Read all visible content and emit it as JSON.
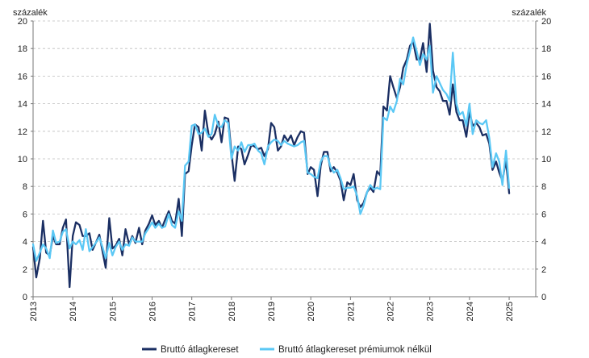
{
  "chart_data": {
    "type": "line",
    "y_unit_left": "százalék",
    "y_unit_right": "százalék",
    "ylim": [
      0,
      20
    ],
    "yticks": [
      0,
      2,
      4,
      6,
      8,
      10,
      12,
      14,
      16,
      18,
      20
    ],
    "xlim": [
      2013.0,
      2025.67
    ],
    "xticks": [
      "2013",
      "2014",
      "2015",
      "2016",
      "2017",
      "2018",
      "2019",
      "2020",
      "2021",
      "2022",
      "2023",
      "2024",
      "2025"
    ],
    "grid": "horizontal dashed",
    "legend_position": "bottom",
    "series": [
      {
        "name": "Bruttó átlagkereset",
        "color": "#1b2f63",
        "points": [
          [
            2013.0,
            3.6
          ],
          [
            2013.08,
            1.4
          ],
          [
            2013.17,
            2.8
          ],
          [
            2013.25,
            5.5
          ],
          [
            2013.33,
            3.2
          ],
          [
            2013.42,
            3.0
          ],
          [
            2013.5,
            4.4
          ],
          [
            2013.58,
            3.8
          ],
          [
            2013.67,
            3.8
          ],
          [
            2013.75,
            5.0
          ],
          [
            2013.83,
            5.6
          ],
          [
            2013.92,
            0.7
          ],
          [
            2014.0,
            4.4
          ],
          [
            2014.08,
            5.4
          ],
          [
            2014.17,
            5.2
          ],
          [
            2014.25,
            4.4
          ],
          [
            2014.33,
            4.4
          ],
          [
            2014.42,
            4.6
          ],
          [
            2014.5,
            3.4
          ],
          [
            2014.58,
            3.9
          ],
          [
            2014.67,
            4.5
          ],
          [
            2014.75,
            3.3
          ],
          [
            2014.83,
            2.1
          ],
          [
            2014.92,
            5.7
          ],
          [
            2015.0,
            3.5
          ],
          [
            2015.08,
            3.7
          ],
          [
            2015.17,
            4.2
          ],
          [
            2015.25,
            3.0
          ],
          [
            2015.33,
            4.9
          ],
          [
            2015.42,
            3.8
          ],
          [
            2015.5,
            4.4
          ],
          [
            2015.58,
            3.9
          ],
          [
            2015.67,
            5.0
          ],
          [
            2015.75,
            3.8
          ],
          [
            2015.83,
            4.8
          ],
          [
            2015.92,
            5.3
          ],
          [
            2016.0,
            5.9
          ],
          [
            2016.08,
            5.2
          ],
          [
            2016.17,
            5.5
          ],
          [
            2016.25,
            5.0
          ],
          [
            2016.33,
            5.6
          ],
          [
            2016.42,
            6.2
          ],
          [
            2016.5,
            5.5
          ],
          [
            2016.58,
            5.3
          ],
          [
            2016.67,
            7.1
          ],
          [
            2016.75,
            4.4
          ],
          [
            2016.83,
            8.9
          ],
          [
            2016.92,
            9.1
          ],
          [
            2017.0,
            11.0
          ],
          [
            2017.08,
            12.5
          ],
          [
            2017.17,
            12.3
          ],
          [
            2017.25,
            10.6
          ],
          [
            2017.33,
            13.5
          ],
          [
            2017.42,
            11.8
          ],
          [
            2017.5,
            11.4
          ],
          [
            2017.58,
            11.8
          ],
          [
            2017.67,
            12.7
          ],
          [
            2017.75,
            11.2
          ],
          [
            2017.83,
            13.0
          ],
          [
            2017.92,
            12.9
          ],
          [
            2018.0,
            10.4
          ],
          [
            2018.08,
            8.4
          ],
          [
            2018.17,
            10.9
          ],
          [
            2018.25,
            10.7
          ],
          [
            2018.33,
            9.6
          ],
          [
            2018.42,
            10.3
          ],
          [
            2018.5,
            11.0
          ],
          [
            2018.58,
            10.9
          ],
          [
            2018.67,
            10.7
          ],
          [
            2018.75,
            10.8
          ],
          [
            2018.83,
            10.2
          ],
          [
            2018.92,
            10.7
          ],
          [
            2019.0,
            12.6
          ],
          [
            2019.08,
            12.3
          ],
          [
            2019.17,
            10.6
          ],
          [
            2019.25,
            10.9
          ],
          [
            2019.33,
            11.7
          ],
          [
            2019.42,
            11.3
          ],
          [
            2019.5,
            11.7
          ],
          [
            2019.58,
            11.0
          ],
          [
            2019.67,
            11.6
          ],
          [
            2019.75,
            12.0
          ],
          [
            2019.83,
            11.9
          ],
          [
            2019.92,
            8.9
          ],
          [
            2020.0,
            9.4
          ],
          [
            2020.08,
            9.2
          ],
          [
            2020.17,
            7.3
          ],
          [
            2020.25,
            9.5
          ],
          [
            2020.33,
            10.5
          ],
          [
            2020.42,
            10.5
          ],
          [
            2020.5,
            9.1
          ],
          [
            2020.58,
            9.4
          ],
          [
            2020.67,
            9.0
          ],
          [
            2020.75,
            8.4
          ],
          [
            2020.83,
            7.0
          ],
          [
            2020.92,
            8.3
          ],
          [
            2021.0,
            8.1
          ],
          [
            2021.08,
            8.9
          ],
          [
            2021.17,
            7.0
          ],
          [
            2021.25,
            6.5
          ],
          [
            2021.33,
            6.8
          ],
          [
            2021.42,
            7.6
          ],
          [
            2021.5,
            7.9
          ],
          [
            2021.58,
            7.6
          ],
          [
            2021.67,
            9.1
          ],
          [
            2021.75,
            8.8
          ],
          [
            2021.83,
            13.8
          ],
          [
            2021.92,
            13.5
          ],
          [
            2022.0,
            16.0
          ],
          [
            2022.08,
            15.2
          ],
          [
            2022.17,
            14.4
          ],
          [
            2022.25,
            15.2
          ],
          [
            2022.33,
            16.6
          ],
          [
            2022.42,
            17.2
          ],
          [
            2022.5,
            18.2
          ],
          [
            2022.58,
            18.5
          ],
          [
            2022.67,
            17.2
          ],
          [
            2022.75,
            17.2
          ],
          [
            2022.83,
            18.4
          ],
          [
            2022.92,
            16.3
          ],
          [
            2023.0,
            19.8
          ],
          [
            2023.08,
            16.4
          ],
          [
            2023.17,
            15.2
          ],
          [
            2023.25,
            14.9
          ],
          [
            2023.33,
            14.2
          ],
          [
            2023.42,
            14.2
          ],
          [
            2023.5,
            13.2
          ],
          [
            2023.58,
            15.4
          ],
          [
            2023.67,
            13.4
          ],
          [
            2023.75,
            12.8
          ],
          [
            2023.83,
            12.8
          ],
          [
            2023.92,
            11.6
          ],
          [
            2024.0,
            13.4
          ],
          [
            2024.08,
            12.4
          ],
          [
            2024.17,
            12.6
          ],
          [
            2024.25,
            12.3
          ],
          [
            2024.33,
            11.7
          ],
          [
            2024.42,
            11.8
          ],
          [
            2024.5,
            11.1
          ],
          [
            2024.58,
            9.2
          ],
          [
            2024.67,
            9.8
          ],
          [
            2024.75,
            9.0
          ],
          [
            2024.83,
            8.4
          ],
          [
            2024.92,
            9.9
          ],
          [
            2025.0,
            7.5
          ]
        ]
      },
      {
        "name": "Bruttó átlagkereset prémiumok nélkül",
        "color": "#5bc8f5",
        "points": [
          [
            2013.0,
            3.8
          ],
          [
            2013.08,
            2.6
          ],
          [
            2013.17,
            3.2
          ],
          [
            2013.25,
            3.8
          ],
          [
            2013.33,
            3.5
          ],
          [
            2013.42,
            2.8
          ],
          [
            2013.5,
            4.8
          ],
          [
            2013.58,
            3.9
          ],
          [
            2013.67,
            4.0
          ],
          [
            2013.75,
            4.7
          ],
          [
            2013.83,
            4.9
          ],
          [
            2013.92,
            3.5
          ],
          [
            2014.0,
            4.0
          ],
          [
            2014.08,
            3.8
          ],
          [
            2014.17,
            4.1
          ],
          [
            2014.25,
            3.4
          ],
          [
            2014.33,
            4.9
          ],
          [
            2014.42,
            3.3
          ],
          [
            2014.5,
            3.6
          ],
          [
            2014.58,
            3.9
          ],
          [
            2014.67,
            4.3
          ],
          [
            2014.75,
            3.6
          ],
          [
            2014.83,
            2.8
          ],
          [
            2014.92,
            3.9
          ],
          [
            2015.0,
            3.0
          ],
          [
            2015.08,
            3.6
          ],
          [
            2015.17,
            4.0
          ],
          [
            2015.25,
            3.4
          ],
          [
            2015.33,
            3.8
          ],
          [
            2015.42,
            3.7
          ],
          [
            2015.5,
            4.3
          ],
          [
            2015.58,
            4.0
          ],
          [
            2015.67,
            4.0
          ],
          [
            2015.75,
            4.0
          ],
          [
            2015.83,
            4.6
          ],
          [
            2015.92,
            5.0
          ],
          [
            2016.0,
            5.4
          ],
          [
            2016.08,
            5.0
          ],
          [
            2016.17,
            5.3
          ],
          [
            2016.25,
            5.0
          ],
          [
            2016.33,
            5.1
          ],
          [
            2016.42,
            6.0
          ],
          [
            2016.5,
            5.2
          ],
          [
            2016.58,
            5.0
          ],
          [
            2016.67,
            6.2
          ],
          [
            2016.75,
            5.5
          ],
          [
            2016.83,
            9.5
          ],
          [
            2016.92,
            9.8
          ],
          [
            2017.0,
            12.4
          ],
          [
            2017.08,
            12.5
          ],
          [
            2017.17,
            11.8
          ],
          [
            2017.25,
            11.9
          ],
          [
            2017.33,
            12.2
          ],
          [
            2017.42,
            11.6
          ],
          [
            2017.5,
            11.8
          ],
          [
            2017.58,
            13.2
          ],
          [
            2017.67,
            12.4
          ],
          [
            2017.75,
            12.3
          ],
          [
            2017.83,
            12.8
          ],
          [
            2017.92,
            12.6
          ],
          [
            2018.0,
            10.0
          ],
          [
            2018.08,
            10.9
          ],
          [
            2018.17,
            10.6
          ],
          [
            2018.25,
            11.2
          ],
          [
            2018.33,
            10.5
          ],
          [
            2018.42,
            11.0
          ],
          [
            2018.5,
            11.0
          ],
          [
            2018.58,
            11.1
          ],
          [
            2018.67,
            10.6
          ],
          [
            2018.75,
            10.4
          ],
          [
            2018.83,
            9.6
          ],
          [
            2018.92,
            10.9
          ],
          [
            2019.0,
            11.2
          ],
          [
            2019.08,
            11.4
          ],
          [
            2019.17,
            11.3
          ],
          [
            2019.25,
            11.0
          ],
          [
            2019.33,
            11.3
          ],
          [
            2019.42,
            11.1
          ],
          [
            2019.5,
            11.0
          ],
          [
            2019.58,
            10.9
          ],
          [
            2019.67,
            11.0
          ],
          [
            2019.75,
            11.2
          ],
          [
            2019.83,
            11.3
          ],
          [
            2019.92,
            9.0
          ],
          [
            2020.0,
            8.9
          ],
          [
            2020.08,
            8.7
          ],
          [
            2020.17,
            8.6
          ],
          [
            2020.25,
            9.8
          ],
          [
            2020.33,
            10.2
          ],
          [
            2020.42,
            10.2
          ],
          [
            2020.5,
            9.4
          ],
          [
            2020.58,
            9.0
          ],
          [
            2020.67,
            9.2
          ],
          [
            2020.75,
            8.6
          ],
          [
            2020.83,
            7.8
          ],
          [
            2020.92,
            7.9
          ],
          [
            2021.0,
            7.9
          ],
          [
            2021.08,
            8.0
          ],
          [
            2021.17,
            7.3
          ],
          [
            2021.25,
            6.0
          ],
          [
            2021.33,
            6.6
          ],
          [
            2021.42,
            7.6
          ],
          [
            2021.5,
            8.1
          ],
          [
            2021.58,
            7.8
          ],
          [
            2021.67,
            7.9
          ],
          [
            2021.75,
            7.8
          ],
          [
            2021.83,
            13.0
          ],
          [
            2021.92,
            12.8
          ],
          [
            2022.0,
            13.8
          ],
          [
            2022.08,
            13.4
          ],
          [
            2022.17,
            14.2
          ],
          [
            2022.25,
            15.8
          ],
          [
            2022.33,
            15.4
          ],
          [
            2022.42,
            16.9
          ],
          [
            2022.5,
            17.8
          ],
          [
            2022.58,
            18.8
          ],
          [
            2022.67,
            17.8
          ],
          [
            2022.75,
            16.8
          ],
          [
            2022.83,
            17.6
          ],
          [
            2022.92,
            17.2
          ],
          [
            2023.0,
            18.2
          ],
          [
            2023.08,
            14.8
          ],
          [
            2023.17,
            16.0
          ],
          [
            2023.25,
            15.5
          ],
          [
            2023.33,
            15.0
          ],
          [
            2023.42,
            14.7
          ],
          [
            2023.5,
            14.2
          ],
          [
            2023.58,
            17.7
          ],
          [
            2023.67,
            14.0
          ],
          [
            2023.75,
            13.2
          ],
          [
            2023.83,
            13.4
          ],
          [
            2023.92,
            12.4
          ],
          [
            2024.0,
            14.0
          ],
          [
            2024.08,
            11.8
          ],
          [
            2024.17,
            12.8
          ],
          [
            2024.25,
            12.6
          ],
          [
            2024.33,
            12.5
          ],
          [
            2024.42,
            12.8
          ],
          [
            2024.5,
            11.5
          ],
          [
            2024.58,
            9.4
          ],
          [
            2024.67,
            10.4
          ],
          [
            2024.75,
            9.8
          ],
          [
            2024.83,
            8.1
          ],
          [
            2024.92,
            10.6
          ],
          [
            2025.0,
            7.9
          ]
        ]
      }
    ]
  }
}
